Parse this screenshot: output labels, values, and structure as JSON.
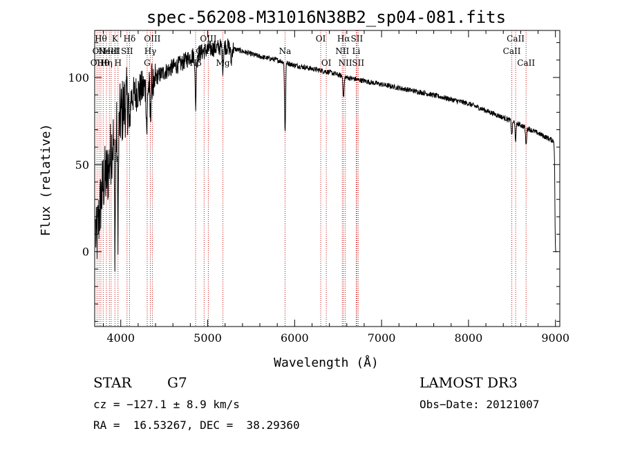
{
  "chart_data": {
    "type": "line",
    "title": "spec-56208-M31016N38B2_sp04-081.fits",
    "xlabel": "Wavelength (Å)",
    "ylabel": "Flux (relative)",
    "xlim": [
      3700,
      9050
    ],
    "ylim": [
      -43,
      127
    ],
    "x_ticks": [
      4000,
      5000,
      6000,
      7000,
      8000,
      9000
    ],
    "y_ticks": [
      0,
      50,
      100
    ],
    "grid": false,
    "series": [
      {
        "name": "spectrum",
        "anchors": [
          [
            3700,
            20
          ],
          [
            3720,
            5
          ],
          [
            3760,
            25
          ],
          [
            3800,
            40
          ],
          [
            3850,
            45
          ],
          [
            3900,
            62
          ],
          [
            3950,
            70
          ],
          [
            4000,
            78
          ],
          [
            4050,
            85
          ],
          [
            4100,
            88
          ],
          [
            4200,
            92
          ],
          [
            4300,
            95
          ],
          [
            4400,
            100
          ],
          [
            4500,
            103
          ],
          [
            4600,
            106
          ],
          [
            4700,
            108
          ],
          [
            4800,
            112
          ],
          [
            4900,
            114
          ],
          [
            5000,
            116
          ],
          [
            5200,
            118
          ],
          [
            5400,
            115
          ],
          [
            5600,
            112
          ],
          [
            5800,
            110
          ],
          [
            6000,
            107
          ],
          [
            6200,
            105
          ],
          [
            6400,
            103
          ],
          [
            6600,
            100
          ],
          [
            6800,
            98
          ],
          [
            7000,
            96
          ],
          [
            7500,
            91
          ],
          [
            8000,
            85
          ],
          [
            8500,
            75
          ],
          [
            8800,
            68
          ],
          [
            9000,
            63
          ]
        ],
        "absorption_lines": [
          [
            3933,
            60
          ],
          [
            3968,
            55
          ],
          [
            4101,
            20
          ],
          [
            4300,
            25
          ],
          [
            4340,
            20
          ],
          [
            4383,
            10
          ],
          [
            4861,
            30
          ],
          [
            5175,
            12
          ],
          [
            5270,
            8
          ],
          [
            5890,
            40
          ],
          [
            6563,
            12
          ],
          [
            8498,
            8
          ],
          [
            8542,
            10
          ],
          [
            8662,
            10
          ],
          [
            9000,
            60
          ]
        ],
        "noise_start": 4400
      }
    ],
    "reference_lines": [
      {
        "wavelength": 3727,
        "label": "OII",
        "row": 2
      },
      {
        "wavelength": 3750,
        "label": "OII",
        "row": 1
      },
      {
        "wavelength": 3771,
        "label": "Hθ",
        "row": 0
      },
      {
        "wavelength": 3798,
        "label": "Hθ",
        "row": 2
      },
      {
        "wavelength": 3835,
        "label": "Hη",
        "row": 2
      },
      {
        "wavelength": 3869,
        "label": "NeIII",
        "row": 1
      },
      {
        "wavelength": 3889,
        "label": "HeI",
        "row": 1
      },
      {
        "wavelength": 3933,
        "label": "K",
        "row": 0
      },
      {
        "wavelength": 3968,
        "label": "H",
        "row": 2
      },
      {
        "wavelength": 4072,
        "label": "SII",
        "row": 1
      },
      {
        "wavelength": 4101,
        "label": "Hδ",
        "row": 0
      },
      {
        "wavelength": 4304,
        "label": "G",
        "row": 2
      },
      {
        "wavelength": 4340,
        "label": "Hγ",
        "row": 1
      },
      {
        "wavelength": 4363,
        "label": "OIII",
        "row": 0
      },
      {
        "wavelength": 4861,
        "label": "Hβ",
        "row": 2
      },
      {
        "wavelength": 4959,
        "label": "OIII",
        "row": 1
      },
      {
        "wavelength": 5007,
        "label": "OIII",
        "row": 0
      },
      {
        "wavelength": 5175,
        "label": "Mg",
        "row": 2
      },
      {
        "wavelength": 5890,
        "label": "Na",
        "row": 1
      },
      {
        "wavelength": 6300,
        "label": "OI",
        "row": 0
      },
      {
        "wavelength": 6364,
        "label": "OI",
        "row": 2
      },
      {
        "wavelength": 6548,
        "label": "NII",
        "row": 1
      },
      {
        "wavelength": 6563,
        "label": "Hα",
        "row": 0
      },
      {
        "wavelength": 6583,
        "label": "NII",
        "row": 2
      },
      {
        "wavelength": 6708,
        "label": "Li",
        "row": 1
      },
      {
        "wavelength": 6716,
        "label": "SII",
        "row": 0
      },
      {
        "wavelength": 6731,
        "label": "SII",
        "row": 2
      },
      {
        "wavelength": 8498,
        "label": "CaII",
        "row": 1
      },
      {
        "wavelength": 8542,
        "label": "CaII",
        "row": 0
      },
      {
        "wavelength": 8662,
        "label": "CaII",
        "row": 2
      }
    ],
    "colors": {
      "spectrum": "#000000",
      "reference_line": "#cc0000",
      "axes": "#000000"
    }
  },
  "info": {
    "object_class": "STAR",
    "subclass": "G7",
    "survey": "LAMOST DR3",
    "redshift": "cz = −127.1 ± 8.9 km/s",
    "obs_date": "Obs−Date: 20121007",
    "coordinates": "RA =  16.53267, DEC =  38.29360"
  }
}
